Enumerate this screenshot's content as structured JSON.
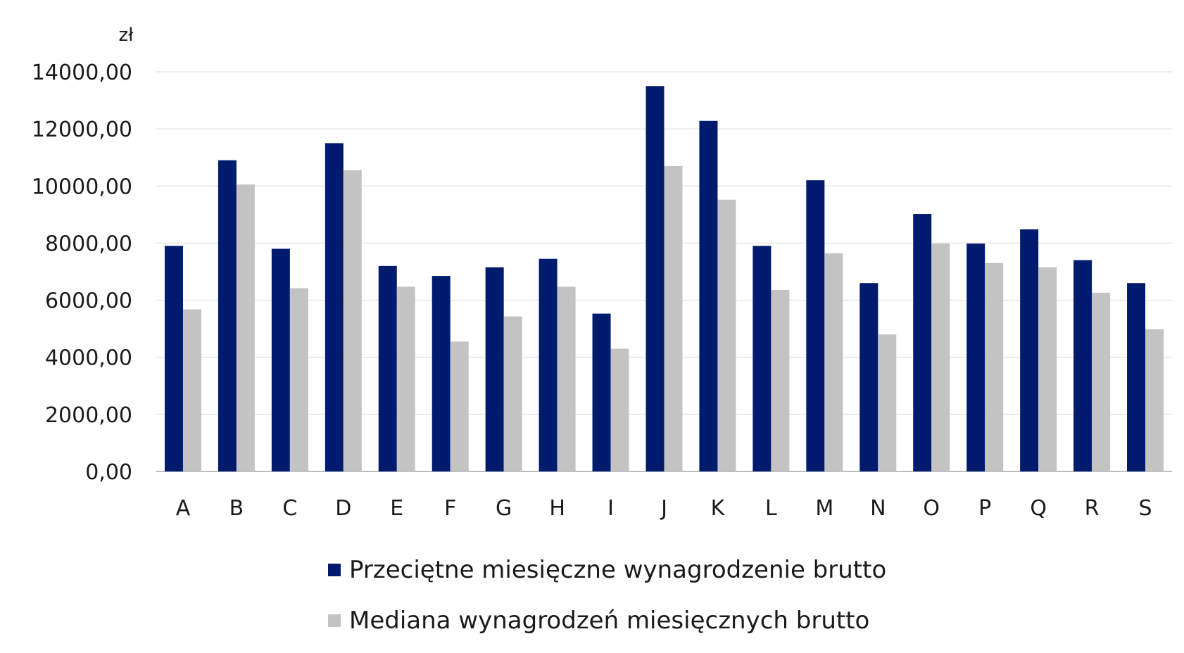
{
  "chart_data": {
    "type": "bar",
    "unit": "zł",
    "categories": [
      "A",
      "B",
      "C",
      "D",
      "E",
      "F",
      "G",
      "H",
      "I",
      "J",
      "K",
      "L",
      "M",
      "N",
      "O",
      "P",
      "Q",
      "R",
      "S"
    ],
    "series": [
      {
        "name": "Przeciętne miesięczne wynagrodzenie brutto",
        "color": "#001a6e",
        "values": [
          7900,
          10900,
          7800,
          11500,
          7200,
          6850,
          7150,
          7450,
          5530,
          13500,
          12280,
          7900,
          10200,
          6600,
          9020,
          7980,
          8480,
          7400,
          6600
        ]
      },
      {
        "name": "Mediana wynagrodzeń miesięcznych brutto",
        "color": "#c3c3c3",
        "values": [
          5680,
          10050,
          6420,
          10550,
          6470,
          4550,
          5430,
          6470,
          4300,
          10700,
          9520,
          6360,
          7640,
          4800,
          7980,
          7300,
          7150,
          6260,
          4980
        ]
      }
    ],
    "yticks": [
      "0,00",
      "2000,00",
      "4000,00",
      "6000,00",
      "8000,00",
      "10000,00",
      "12000,00",
      "14000,00"
    ],
    "ylim": [
      0,
      14000
    ],
    "grid": true,
    "legend_position": "bottom"
  }
}
